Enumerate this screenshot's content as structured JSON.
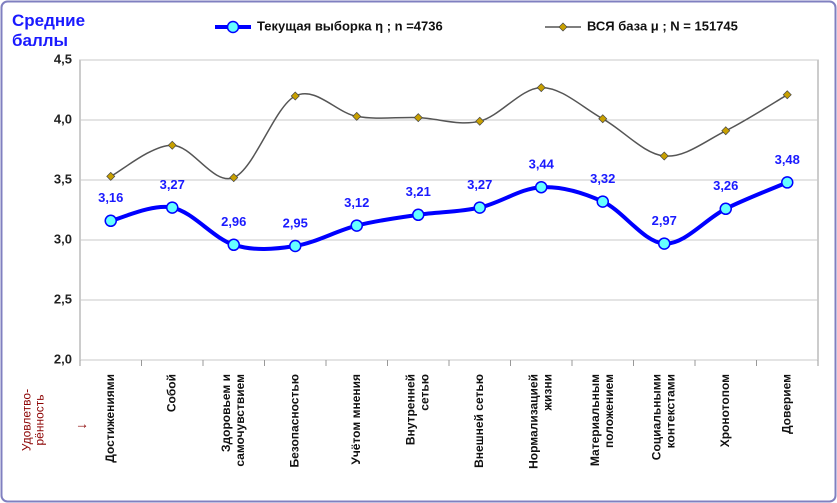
{
  "chart_data": {
    "type": "line",
    "y_label": "Средние\nбаллы",
    "annotations": [
      "Удовлетво-\nрённость",
      "→"
    ],
    "categories": [
      "Достижениями",
      "Собой",
      "Здоровьем и\nсамочувствием",
      "Безопасностью",
      "Учётом мнения",
      "Внутренней\nсетью",
      "Внешней сетью",
      "Нормализацией\nжизни",
      "Материальным\nположением",
      "Социальными\nконтекстами",
      "Хронотопом",
      "Доверием"
    ],
    "series": [
      {
        "name": "Текущая выборка η ; n =4736",
        "color": "#0000ff",
        "marker_color": "#66ffff",
        "values": [
          3.16,
          3.27,
          2.96,
          2.95,
          3.12,
          3.21,
          3.27,
          3.44,
          3.32,
          2.97,
          3.26,
          3.48
        ],
        "value_labels": [
          "3,16",
          "3,27",
          "2,96",
          "2,95",
          "3,12",
          "3,21",
          "3,27",
          "3,44",
          "3,32",
          "2,97",
          "3,26",
          "3,48"
        ]
      },
      {
        "name": "ВСЯ база μ ; N = 151745",
        "color": "#555555",
        "marker_color": "#c8a000",
        "values": [
          3.53,
          3.79,
          3.52,
          4.2,
          4.03,
          4.02,
          3.99,
          4.27,
          4.01,
          3.7,
          3.91,
          4.21
        ]
      }
    ],
    "ylim": [
      2.0,
      4.5
    ],
    "yticks": [
      {
        "value": 2.0,
        "label": "2,0"
      },
      {
        "value": 2.5,
        "label": "2,5"
      },
      {
        "value": 3.0,
        "label": "3,0"
      },
      {
        "value": 3.5,
        "label": "3,5"
      },
      {
        "value": 4.0,
        "label": "4,0"
      },
      {
        "value": 4.5,
        "label": "4,5"
      }
    ],
    "legend": "top"
  }
}
